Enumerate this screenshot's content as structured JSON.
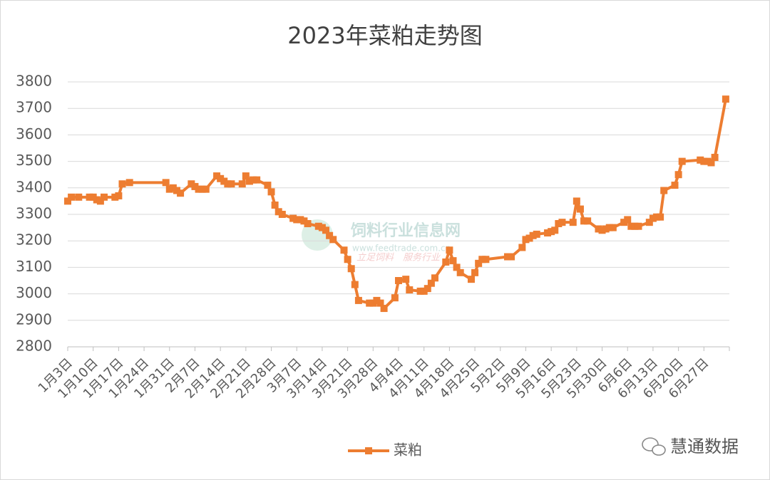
{
  "chart_data": {
    "type": "line",
    "title": "2023年菜粕走势图",
    "series": [
      {
        "name": "菜粕",
        "color": "#ed7d31",
        "x": [
          "1月3日",
          "1月4日",
          "1月6日",
          "1月9日",
          "1月10日",
          "1月11日",
          "1月12日",
          "1月13日",
          "1月16日",
          "1月17日",
          "1月18日",
          "1月20日",
          "1月30日",
          "1月31日",
          "2月1日",
          "2月2日",
          "2月3日",
          "2月6日",
          "2月7日",
          "2月8日",
          "2月9日",
          "2月10日",
          "2月13日",
          "2月14日",
          "2月15日",
          "2月16日",
          "2月17日",
          "2月20日",
          "2月21日",
          "2月22日",
          "2月23日",
          "2月24日",
          "2月27日",
          "2月28日",
          "3月1日",
          "3月2日",
          "3月3日",
          "3月6日",
          "3月7日",
          "3月8日",
          "3月9日",
          "3月10日",
          "3月13日",
          "3月14日",
          "3月15日",
          "3月16日",
          "3月17日",
          "3月20日",
          "3月21日",
          "3月22日",
          "3月23日",
          "3月24日",
          "3月27日",
          "3月28日",
          "3月29日",
          "3月30日",
          "3月31日",
          "4月3日",
          "4月4日",
          "4月6日",
          "4月7日",
          "4月10日",
          "4月11日",
          "4月12日",
          "4月13日",
          "4月14日",
          "4月17日",
          "4月18日",
          "4月19日",
          "4月20日",
          "4月21日",
          "4月24日",
          "4月25日",
          "4月26日",
          "4月27日",
          "4月28日",
          "5月4日",
          "5月5日",
          "5月8日",
          "5月9日",
          "5月10日",
          "5月11日",
          "5月12日",
          "5月15日",
          "5月16日",
          "5月17日",
          "5月18日",
          "5月19日",
          "5月22日",
          "5月23日",
          "5月24日",
          "5月25日",
          "5月26日",
          "5月29日",
          "5月30日",
          "5月31日",
          "6月1日",
          "6月2日",
          "6月5日",
          "6月6日",
          "6月7日",
          "6月8日",
          "6月9日",
          "6月12日",
          "6月13日",
          "6月14日",
          "6月15日",
          "6月16日",
          "6月19日",
          "6月20日",
          "6月21日",
          "6月26日",
          "6月27日",
          "6月28日",
          "6月29日",
          "6月30日",
          "7月3日"
        ],
        "values": [
          3350,
          3365,
          3365,
          3365,
          3365,
          3355,
          3350,
          3365,
          3365,
          3370,
          3415,
          3420,
          3420,
          3395,
          3400,
          3390,
          3380,
          3415,
          3405,
          3395,
          3395,
          3395,
          3445,
          3435,
          3425,
          3415,
          3415,
          3415,
          3445,
          3425,
          3430,
          3430,
          3410,
          3385,
          3335,
          3310,
          3300,
          3285,
          3280,
          3280,
          3275,
          3265,
          3255,
          3250,
          3240,
          3220,
          3205,
          3165,
          3130,
          3095,
          3035,
          2975,
          2965,
          2965,
          2975,
          2965,
          2945,
          2985,
          3050,
          3055,
          3015,
          3010,
          3010,
          3020,
          3040,
          3060,
          3120,
          3165,
          3125,
          3100,
          3080,
          3055,
          3080,
          3115,
          3130,
          3130,
          3140,
          3140,
          3175,
          3205,
          3210,
          3220,
          3225,
          3230,
          3235,
          3240,
          3265,
          3270,
          3270,
          3350,
          3320,
          3275,
          3275,
          3245,
          3240,
          3245,
          3250,
          3250,
          3270,
          3280,
          3255,
          3255,
          3255,
          3270,
          3285,
          3290,
          3290,
          3390,
          3410,
          3450,
          3500,
          3505,
          3500,
          3500,
          3495,
          3515,
          3735
        ]
      }
    ],
    "xlim": [
      "1月3日",
      "7月4日"
    ],
    "xticks": [
      "1月3日",
      "1月10日",
      "1月17日",
      "1月24日",
      "1月31日",
      "2月7日",
      "2月14日",
      "2月21日",
      "2月28日",
      "3月7日",
      "3月14日",
      "3月21日",
      "3月28日",
      "4月4日",
      "4月11日",
      "4月18日",
      "4月25日",
      "5月2日",
      "5月9日",
      "5月16日",
      "5月23日",
      "5月30日",
      "6月6日",
      "6月13日",
      "6月20日",
      "6月27日"
    ],
    "ylim": [
      2800,
      3800
    ],
    "yticks": [
      2800,
      2900,
      3000,
      3100,
      3200,
      3300,
      3400,
      3500,
      3600,
      3700,
      3800
    ],
    "grid": true,
    "legend": "bottom",
    "annotations": [
      "饲料行业信息网",
      "www.feedtrade.com.cn",
      "立足饲料　服务行业",
      "慧通数据"
    ]
  }
}
